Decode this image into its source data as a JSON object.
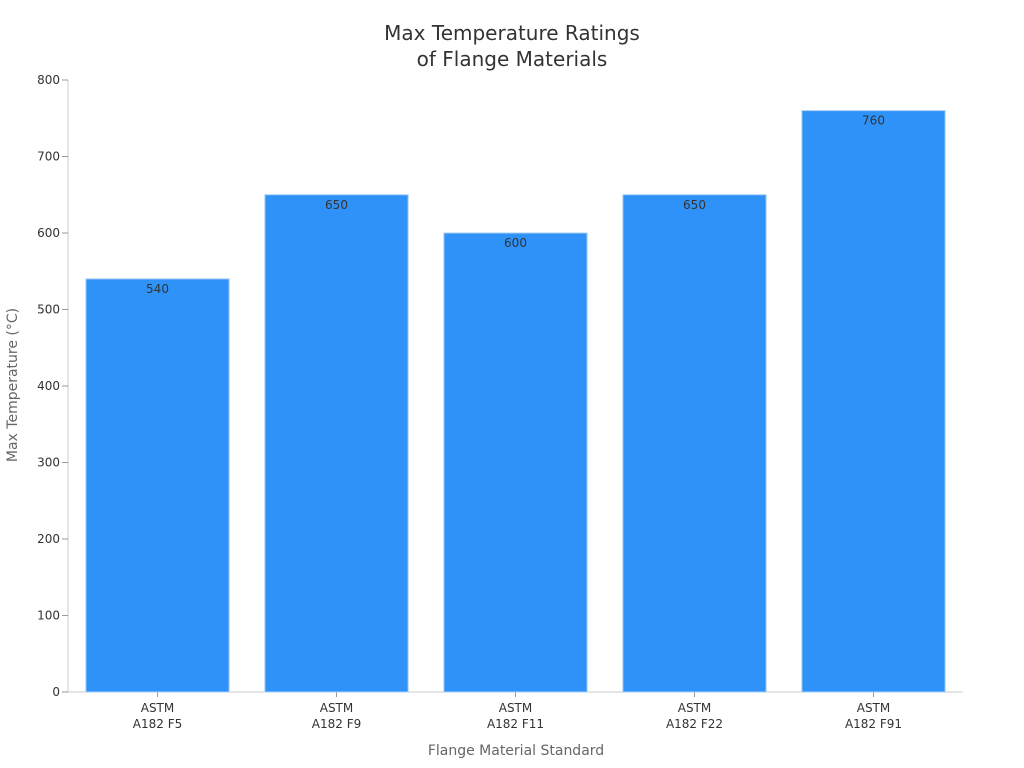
{
  "chart_data": {
    "type": "bar",
    "title": [
      "Max Temperature Ratings",
      "of Flange Materials"
    ],
    "xlabel": "Flange Material Standard",
    "ylabel": "Max Temperature (°C)",
    "categories": [
      [
        "ASTM",
        "A182 F5"
      ],
      [
        "ASTM",
        "A182 F9"
      ],
      [
        "ASTM",
        "A182 F11"
      ],
      [
        "ASTM",
        "A182 F22"
      ],
      [
        "ASTM",
        "A182 F91"
      ]
    ],
    "values": [
      540,
      650,
      600,
      650,
      760
    ],
    "ylim": [
      0,
      800
    ],
    "yticks": [
      0,
      100,
      200,
      300,
      400,
      500,
      600,
      700,
      800
    ],
    "bar_color": "#2f92f8",
    "bar_edge_color": "#a9cdf5",
    "grid": false,
    "legend": "none"
  }
}
